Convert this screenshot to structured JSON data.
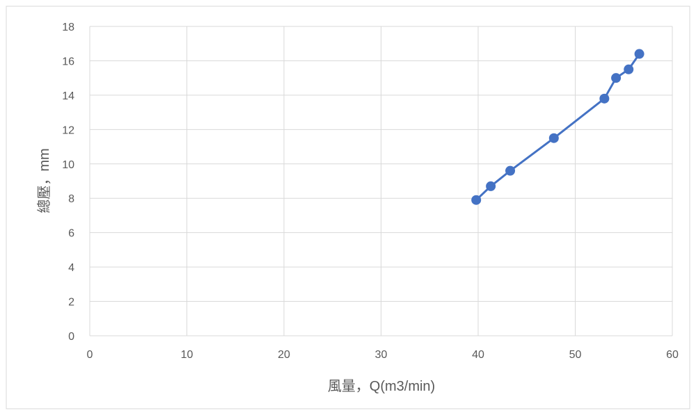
{
  "chart_data": {
    "type": "line",
    "title": "",
    "xlabel": "風量，Q(m3/min)",
    "ylabel": "總壓，mm",
    "xlim": [
      0,
      60
    ],
    "ylim": [
      0,
      18
    ],
    "xticks": [
      0,
      10,
      20,
      30,
      40,
      50,
      60
    ],
    "yticks": [
      0,
      2,
      4,
      6,
      8,
      10,
      12,
      14,
      16,
      18
    ],
    "grid": true,
    "legend": "none",
    "series": [
      {
        "color": "#4472C4",
        "marker": "circle",
        "points": [
          {
            "x": 39.8,
            "y": 7.9
          },
          {
            "x": 41.3,
            "y": 8.7
          },
          {
            "x": 43.3,
            "y": 9.6
          },
          {
            "x": 47.8,
            "y": 11.5
          },
          {
            "x": 53.0,
            "y": 13.8
          },
          {
            "x": 54.2,
            "y": 15.0
          },
          {
            "x": 55.5,
            "y": 15.5
          },
          {
            "x": 56.6,
            "y": 16.4
          }
        ]
      }
    ]
  }
}
